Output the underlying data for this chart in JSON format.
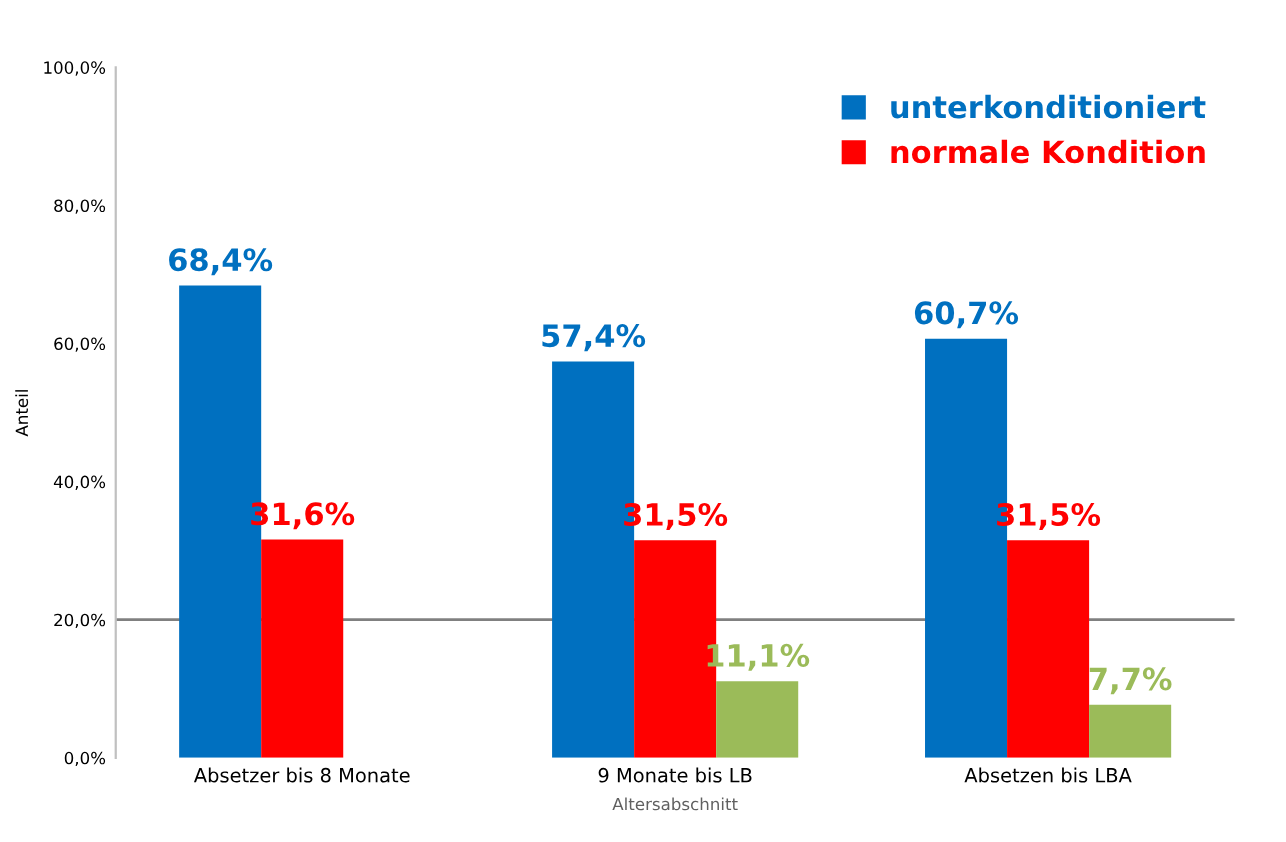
{
  "chart_data": {
    "type": "bar",
    "xlabel": "Altersabschnitt",
    "ylabel": "Anteil",
    "categories": [
      "Absetzer bis 8 Monate",
      "9 Monate bis LB",
      "Absetzen bis LBA"
    ],
    "series": [
      {
        "name": "unterkonditioniert",
        "color": "#0070c0",
        "values": [
          68.4,
          57.4,
          60.7
        ],
        "value_labels": [
          "68,4%",
          "57,4%",
          "60,7%"
        ]
      },
      {
        "name": "normale Kondition",
        "color": "#ff0000",
        "values": [
          31.6,
          31.5,
          31.5
        ],
        "value_labels": [
          "31,6%",
          "31,5%",
          "31,5%"
        ]
      },
      {
        "color": "#9bbb59",
        "values": [
          null,
          11.1,
          7.7
        ],
        "value_labels": [
          null,
          "11,1%",
          "7,7%"
        ]
      }
    ],
    "ylim": [
      0,
      100
    ],
    "yticks": [
      {
        "value": 0,
        "label": "0,0%"
      },
      {
        "value": 20,
        "label": "20,0%"
      },
      {
        "value": 40,
        "label": "40,0%"
      },
      {
        "value": 60,
        "label": "60,0%"
      },
      {
        "value": 80,
        "label": "80,0%"
      },
      {
        "value": 100,
        "label": "100,0%"
      }
    ],
    "ref_lines": [
      {
        "axis": "y",
        "value": 20,
        "color": "#808080"
      }
    ],
    "legend": "top right",
    "grid": false
  }
}
